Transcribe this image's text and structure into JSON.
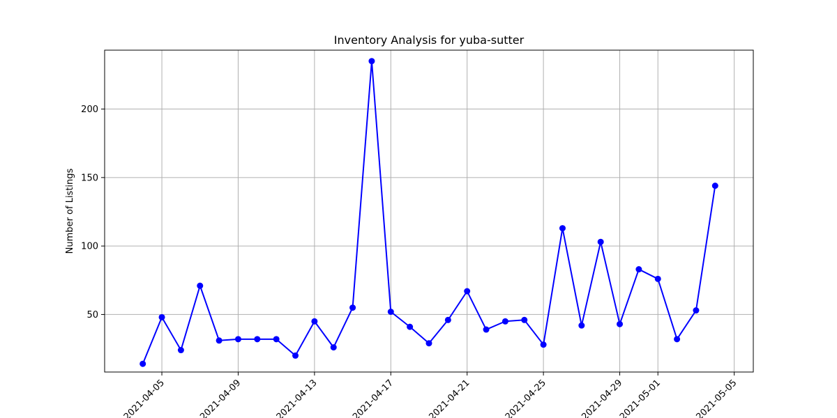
{
  "chart_data": {
    "type": "line",
    "title": "Inventory Analysis for yuba-sutter",
    "xlabel": "",
    "ylabel": "Number of Listings",
    "x_type": "date",
    "xlim": [
      "2021-04-02",
      "2021-05-06"
    ],
    "ylim": [
      8,
      243
    ],
    "x_ticks": [
      "2021-04-05",
      "2021-04-09",
      "2021-04-13",
      "2021-04-17",
      "2021-04-21",
      "2021-04-25",
      "2021-04-29",
      "2021-05-01",
      "2021-05-05"
    ],
    "y_ticks": [
      50,
      100,
      150,
      200
    ],
    "grid": true,
    "series": [
      {
        "color": "#0000ff",
        "marker": "circle",
        "points": [
          {
            "x": "2021-04-04",
            "y": 14
          },
          {
            "x": "2021-04-05",
            "y": 48
          },
          {
            "x": "2021-04-06",
            "y": 24
          },
          {
            "x": "2021-04-07",
            "y": 71
          },
          {
            "x": "2021-04-08",
            "y": 31
          },
          {
            "x": "2021-04-09",
            "y": 32
          },
          {
            "x": "2021-04-10",
            "y": 32
          },
          {
            "x": "2021-04-11",
            "y": 32
          },
          {
            "x": "2021-04-12",
            "y": 20
          },
          {
            "x": "2021-04-13",
            "y": 45
          },
          {
            "x": "2021-04-14",
            "y": 26
          },
          {
            "x": "2021-04-15",
            "y": 55
          },
          {
            "x": "2021-04-16",
            "y": 235
          },
          {
            "x": "2021-04-17",
            "y": 52
          },
          {
            "x": "2021-04-18",
            "y": 41
          },
          {
            "x": "2021-04-19",
            "y": 29
          },
          {
            "x": "2021-04-20",
            "y": 46
          },
          {
            "x": "2021-04-21",
            "y": 67
          },
          {
            "x": "2021-04-22",
            "y": 39
          },
          {
            "x": "2021-04-23",
            "y": 45
          },
          {
            "x": "2021-04-24",
            "y": 46
          },
          {
            "x": "2021-04-25",
            "y": 28
          },
          {
            "x": "2021-04-26",
            "y": 113
          },
          {
            "x": "2021-04-27",
            "y": 42
          },
          {
            "x": "2021-04-28",
            "y": 103
          },
          {
            "x": "2021-04-29",
            "y": 43
          },
          {
            "x": "2021-04-30",
            "y": 83
          },
          {
            "x": "2021-05-01",
            "y": 76
          },
          {
            "x": "2021-05-02",
            "y": 32
          },
          {
            "x": "2021-05-03",
            "y": 53
          },
          {
            "x": "2021-05-04",
            "y": 144
          }
        ]
      }
    ]
  }
}
